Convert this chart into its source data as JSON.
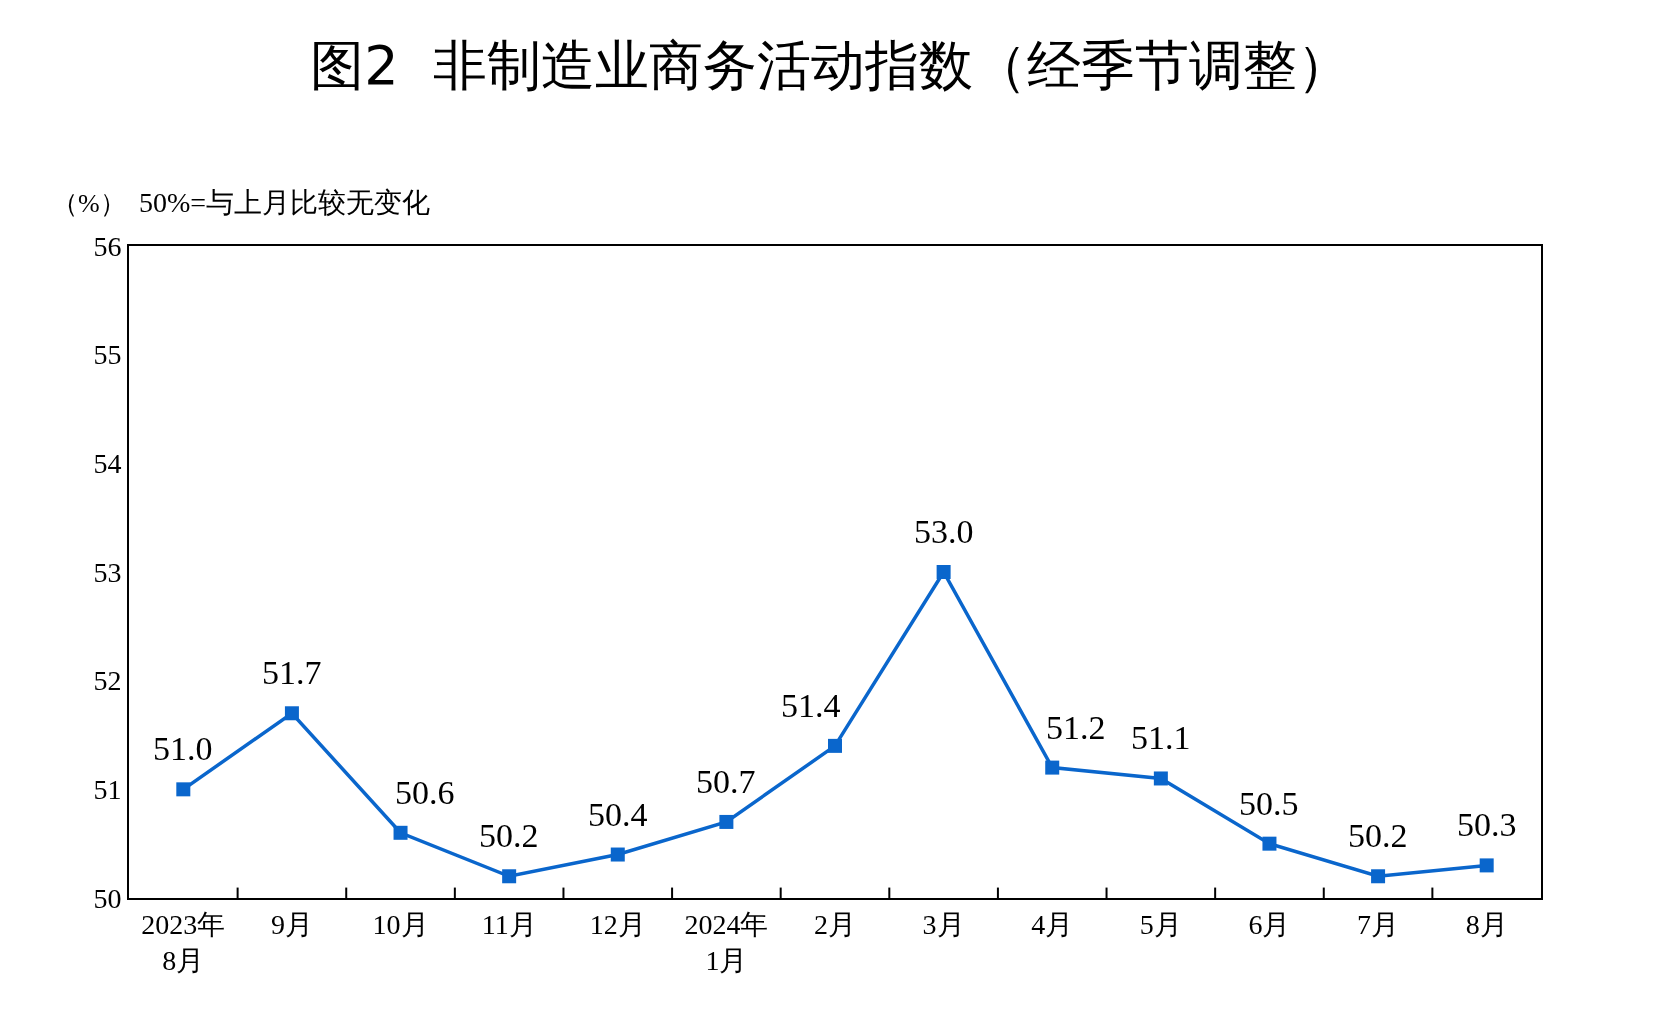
{
  "chart_data": {
    "type": "line",
    "title": "图2  非制造业商务活动指数（经季节调整）",
    "ylabel": "（%）",
    "annotations": [
      "50%=与上月比较无变化"
    ],
    "categories": [
      "2023年\n8月",
      "9月",
      "10月",
      "11月",
      "12月",
      "2024年\n1月",
      "2月",
      "3月",
      "4月",
      "5月",
      "6月",
      "7月",
      "8月"
    ],
    "series": [
      {
        "color": "#0a66cc",
        "values": [
          51.0,
          51.7,
          50.6,
          50.2,
          50.4,
          50.7,
          51.4,
          53.0,
          51.2,
          51.1,
          50.5,
          50.2,
          50.3
        ],
        "value_labels": [
          "51.0",
          "51.7",
          "50.6",
          "50.2",
          "50.4",
          "50.7",
          "51.4",
          "53.0",
          "51.2",
          "51.1",
          "50.5",
          "50.2",
          "50.3"
        ]
      }
    ],
    "ylim": [
      50,
      56
    ],
    "yticks": [
      50,
      51,
      52,
      53,
      54,
      55,
      56
    ],
    "grid": false,
    "marker": "square",
    "line_style": "solid"
  }
}
